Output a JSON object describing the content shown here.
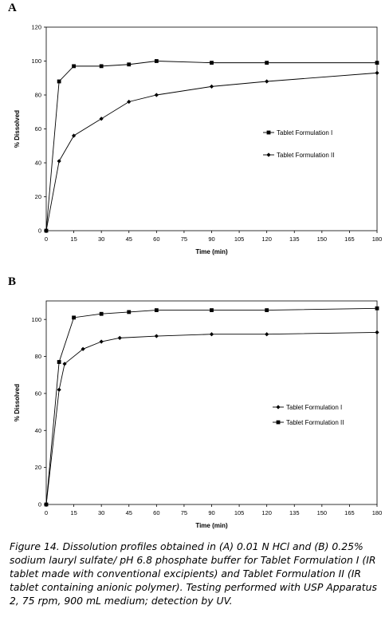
{
  "panels": {
    "a_label": "A",
    "b_label": "B"
  },
  "caption": "Figure 14. Dissolution profiles obtained in (A) 0.01 N HCl and (B) 0.25% sodium lauryl sulfate/ pH 6.8 phosphate buffer for Tablet Formulation I (IR tablet made with conventional excipients) and Tablet Formulation II (IR tablet containing anionic polymer). Testing performed with USP Apparatus 2, 75 rpm, 900 mL medium; detection by UV.",
  "chart_data": [
    {
      "type": "line",
      "panel": "A",
      "xlabel": "Time (min)",
      "ylabel": "% Dissolved",
      "xlim": [
        0,
        180
      ],
      "ylim": [
        0,
        120
      ],
      "xticks": [
        0,
        15,
        30,
        45,
        60,
        75,
        90,
        105,
        120,
        135,
        150,
        165,
        180
      ],
      "yticks": [
        0,
        20,
        40,
        60,
        80,
        100,
        120
      ],
      "legend_position": "right",
      "series": [
        {
          "name": "Tablet Formulation I",
          "marker": "square",
          "x": [
            0,
            7,
            15,
            30,
            45,
            60,
            90,
            120,
            180
          ],
          "y": [
            0,
            88,
            97,
            97,
            98,
            100,
            99,
            99,
            99
          ]
        },
        {
          "name": "Tablet Formulation II",
          "marker": "diamond",
          "x": [
            0,
            7,
            15,
            30,
            45,
            60,
            90,
            120,
            180
          ],
          "y": [
            0,
            41,
            56,
            66,
            76,
            80,
            85,
            88,
            93
          ]
        }
      ]
    },
    {
      "type": "line",
      "panel": "B",
      "xlabel": "Time (min)",
      "ylabel": "% Dissolved",
      "xlim": [
        0,
        180
      ],
      "ylim": [
        0,
        110
      ],
      "xticks": [
        0,
        15,
        30,
        45,
        60,
        75,
        90,
        105,
        120,
        135,
        150,
        165,
        180
      ],
      "yticks": [
        0,
        20,
        40,
        60,
        80,
        100
      ],
      "legend_position": "right",
      "series": [
        {
          "name": "Tablet Formulation I",
          "marker": "diamond",
          "x": [
            0,
            7,
            10,
            20,
            30,
            40,
            60,
            90,
            120,
            180
          ],
          "y": [
            0,
            62,
            76,
            84,
            88,
            90,
            91,
            92,
            92,
            93
          ]
        },
        {
          "name": "Tablet Formulation II",
          "marker": "square",
          "x": [
            0,
            7,
            15,
            30,
            45,
            60,
            90,
            120,
            180
          ],
          "y": [
            0,
            77,
            101,
            103,
            104,
            105,
            105,
            105,
            106
          ]
        }
      ]
    }
  ]
}
